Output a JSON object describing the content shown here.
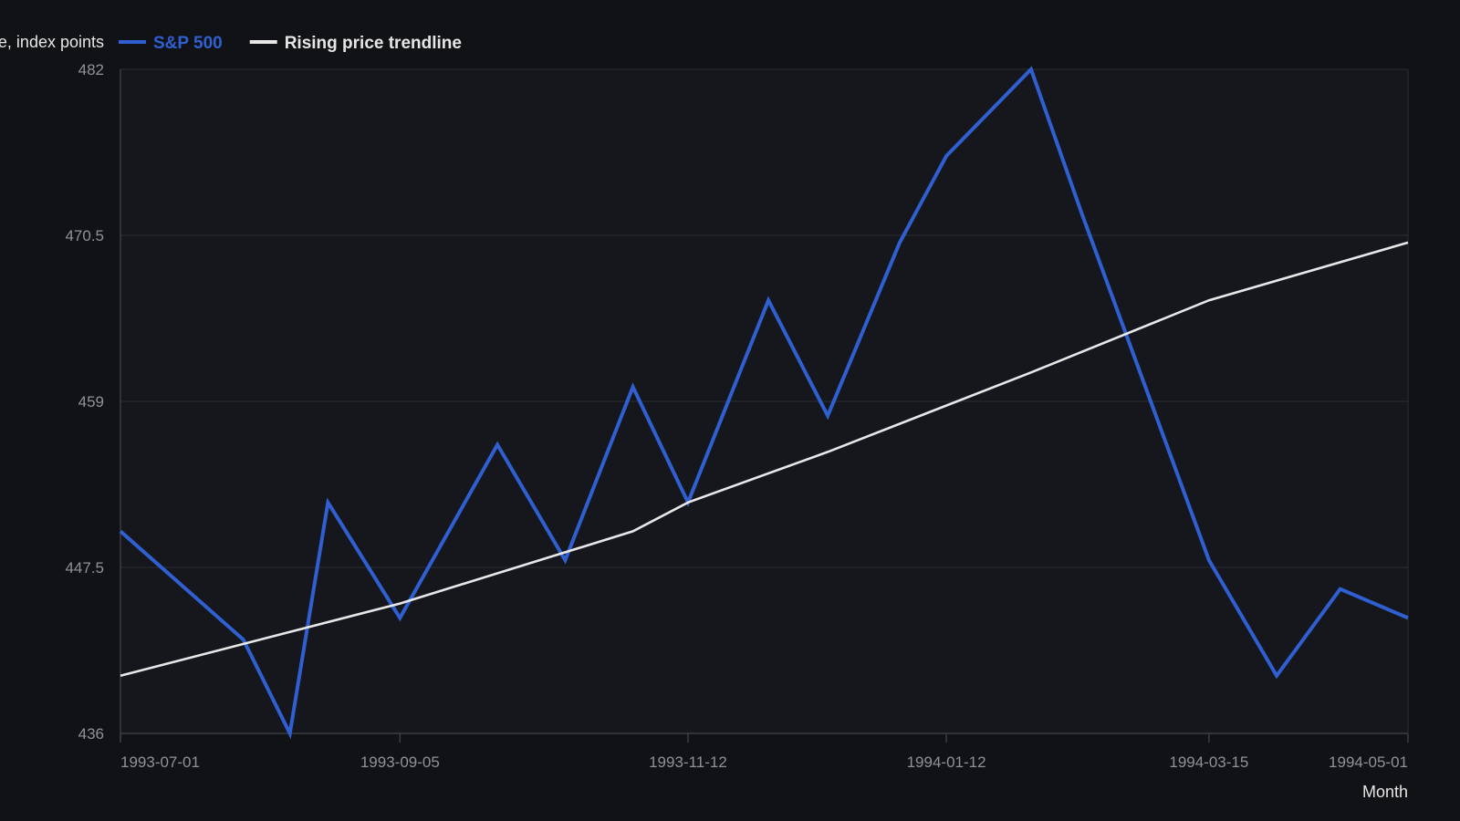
{
  "chart_data": {
    "type": "line",
    "ylabel": "Close, index points",
    "xlabel": "Month",
    "ylim": [
      436,
      482
    ],
    "y_ticks": [
      "436",
      "447.5",
      "459",
      "470.5",
      "482"
    ],
    "x_range": [
      "1993-07-01",
      "1994-05-01"
    ],
    "x_ticks": [
      "1993-07-01",
      "1993-09-05",
      "1993-11-12",
      "1994-01-12",
      "1994-03-15",
      "1994-05-01"
    ],
    "grid": true,
    "legend_position": "top-left",
    "series": [
      {
        "name": "S&P 500",
        "color": "#2f5fd0",
        "points": [
          {
            "x": "1993-07-01",
            "y": 450.0
          },
          {
            "x": "1993-07-30",
            "y": 442.5
          },
          {
            "x": "1993-08-10",
            "y": 436.0
          },
          {
            "x": "1993-08-19",
            "y": 452.0
          },
          {
            "x": "1993-09-05",
            "y": 444.0
          },
          {
            "x": "1993-09-28",
            "y": 456.0
          },
          {
            "x": "1993-10-14",
            "y": 448.0
          },
          {
            "x": "1993-10-30",
            "y": 460.0
          },
          {
            "x": "1993-11-12",
            "y": 452.0
          },
          {
            "x": "1993-12-01",
            "y": 466.0
          },
          {
            "x": "1993-12-15",
            "y": 458.0
          },
          {
            "x": "1994-01-01",
            "y": 470.0
          },
          {
            "x": "1994-01-12",
            "y": 476.0
          },
          {
            "x": "1994-02-01",
            "y": 482.0
          },
          {
            "x": "1994-02-13",
            "y": 472.0
          },
          {
            "x": "1994-03-15",
            "y": 448.0
          },
          {
            "x": "1994-03-31",
            "y": 440.0
          },
          {
            "x": "1994-04-15",
            "y": 446.0
          },
          {
            "x": "1994-05-01",
            "y": 444.0
          }
        ]
      },
      {
        "name": "Rising price trendline",
        "color": "#e8e8e8",
        "points": [
          {
            "x": "1993-07-01",
            "y": 440.0
          },
          {
            "x": "1993-09-05",
            "y": 445.0
          },
          {
            "x": "1993-10-30",
            "y": 450.0
          },
          {
            "x": "1993-11-12",
            "y": 452.0
          },
          {
            "x": "1993-12-15",
            "y": 455.5
          },
          {
            "x": "1994-02-01",
            "y": 461.0
          },
          {
            "x": "1994-03-15",
            "y": 466.0
          },
          {
            "x": "1994-05-01",
            "y": 470.0
          }
        ]
      }
    ]
  },
  "colors": {
    "background": "#111216",
    "plot_background": "#15171c",
    "gridline": "#2a2d33",
    "axis": "#3a3d44"
  }
}
